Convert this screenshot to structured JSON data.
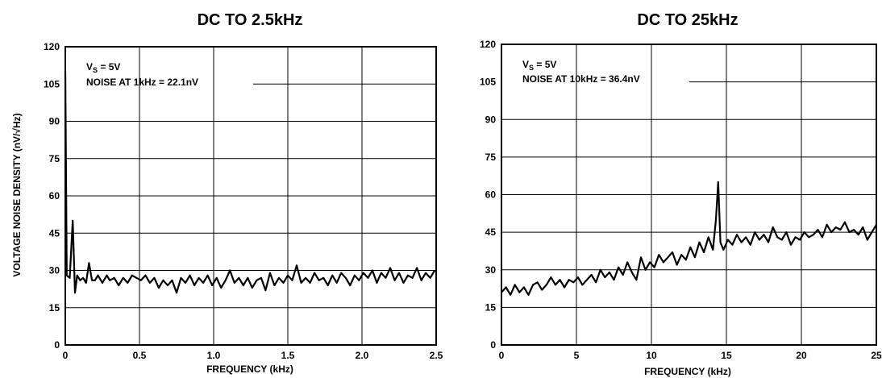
{
  "shared": {
    "ylabel": "VOLTAGE NOISE DENSITY (nV/√Hz)"
  },
  "chart_data": [
    {
      "type": "line",
      "title": "DC TO 2.5kHz",
      "xlabel": "FREQUENCY (kHz)",
      "xlim": [
        0,
        2.5
      ],
      "ylim": [
        0,
        120
      ],
      "x_ticks": [
        "0",
        "0.5",
        "1.0",
        "1.5",
        "2.0",
        "2.5"
      ],
      "y_ticks": [
        "0",
        "15",
        "30",
        "45",
        "60",
        "75",
        "90",
        "105",
        "120"
      ],
      "grid": true,
      "annotations": {
        "condition_main": "V",
        "condition_sub": "S",
        "condition_rest": " = 5V",
        "noise": "NOISE AT 1kHz = 22.1nV"
      },
      "series": [
        {
          "x": [
            0,
            0.01,
            0.03,
            0.05,
            0.065,
            0.08,
            0.1,
            0.12,
            0.14,
            0.16,
            0.18,
            0.2,
            0.22,
            0.25,
            0.28,
            0.3,
            0.33,
            0.36,
            0.39,
            0.42,
            0.45,
            0.48,
            0.51,
            0.54,
            0.57,
            0.6,
            0.63,
            0.66,
            0.69,
            0.72,
            0.75,
            0.78,
            0.81,
            0.84,
            0.87,
            0.9,
            0.93,
            0.96,
            0.99,
            1.02,
            1.05,
            1.08,
            1.11,
            1.14,
            1.17,
            1.2,
            1.23,
            1.26,
            1.29,
            1.32,
            1.35,
            1.38,
            1.41,
            1.44,
            1.47,
            1.5,
            1.53,
            1.56,
            1.59,
            1.62,
            1.65,
            1.68,
            1.71,
            1.74,
            1.77,
            1.8,
            1.83,
            1.86,
            1.89,
            1.92,
            1.95,
            1.98,
            2.01,
            2.04,
            2.07,
            2.1,
            2.13,
            2.16,
            2.19,
            2.22,
            2.25,
            2.28,
            2.31,
            2.34,
            2.37,
            2.4,
            2.43,
            2.46,
            2.49
          ],
          "y": [
            110,
            28,
            27,
            50,
            21,
            28,
            26,
            27,
            25,
            33,
            26,
            26,
            28,
            25,
            28,
            26,
            27,
            24,
            27,
            25,
            28,
            27,
            26,
            28,
            25,
            27,
            23,
            26,
            24,
            26,
            21,
            27,
            25,
            28,
            24,
            27,
            25,
            28,
            24,
            27,
            23,
            26,
            30,
            25,
            27,
            24,
            27,
            23,
            26,
            27,
            22,
            29,
            24,
            27,
            25,
            28,
            26,
            32,
            25,
            27,
            25,
            29,
            26,
            27,
            24,
            28,
            25,
            29,
            27,
            24,
            28,
            26,
            29,
            27,
            30,
            25,
            29,
            27,
            31,
            26,
            29,
            25,
            28,
            27,
            31,
            26,
            29,
            27,
            30
          ]
        }
      ]
    },
    {
      "type": "line",
      "title": "DC TO 25kHz",
      "xlabel": "FREQUENCY (kHz)",
      "xlim": [
        0,
        25
      ],
      "ylim": [
        0,
        120
      ],
      "x_ticks": [
        "0",
        "5",
        "10",
        "15",
        "20",
        "25"
      ],
      "y_ticks": [
        "0",
        "15",
        "30",
        "45",
        "60",
        "75",
        "90",
        "105",
        "120"
      ],
      "grid": true,
      "annotations": {
        "condition_main": "V",
        "condition_sub": "S",
        "condition_rest": " = 5V",
        "noise": "NOISE AT 10kHz = 36.4nV"
      },
      "series": [
        {
          "x": [
            0,
            0.3,
            0.6,
            0.9,
            1.2,
            1.5,
            1.8,
            2.1,
            2.4,
            2.7,
            3.0,
            3.3,
            3.6,
            3.9,
            4.2,
            4.5,
            4.8,
            5.1,
            5.4,
            5.7,
            6.0,
            6.3,
            6.6,
            6.9,
            7.2,
            7.5,
            7.8,
            8.1,
            8.4,
            8.7,
            9.0,
            9.3,
            9.6,
            9.9,
            10.2,
            10.5,
            10.8,
            11.1,
            11.4,
            11.7,
            12.0,
            12.3,
            12.6,
            12.9,
            13.2,
            13.5,
            13.8,
            14.1,
            14.3,
            14.45,
            14.6,
            14.8,
            15.1,
            15.4,
            15.7,
            16.0,
            16.3,
            16.6,
            16.9,
            17.2,
            17.5,
            17.8,
            18.1,
            18.4,
            18.7,
            19.0,
            19.3,
            19.6,
            19.9,
            20.2,
            20.5,
            20.8,
            21.1,
            21.4,
            21.7,
            22.0,
            22.3,
            22.6,
            22.9,
            23.2,
            23.5,
            23.8,
            24.1,
            24.4,
            24.7,
            25.0
          ],
          "y": [
            21,
            23,
            20,
            24,
            21,
            23,
            20,
            24,
            25,
            22,
            24,
            27,
            24,
            26,
            23,
            26,
            25,
            27,
            24,
            26,
            28,
            25,
            30,
            27,
            29,
            26,
            31,
            28,
            33,
            29,
            26,
            35,
            30,
            33,
            31,
            36,
            33,
            35,
            37,
            32,
            36,
            34,
            39,
            35,
            41,
            37,
            43,
            38,
            50,
            65,
            41,
            38,
            42,
            40,
            44,
            41,
            43,
            40,
            45,
            42,
            44,
            41,
            47,
            43,
            42,
            45,
            40,
            43,
            42,
            45,
            43,
            44,
            46,
            43,
            48,
            45,
            47,
            46,
            49,
            45,
            46,
            44,
            47,
            42,
            45,
            48
          ]
        }
      ]
    }
  ]
}
